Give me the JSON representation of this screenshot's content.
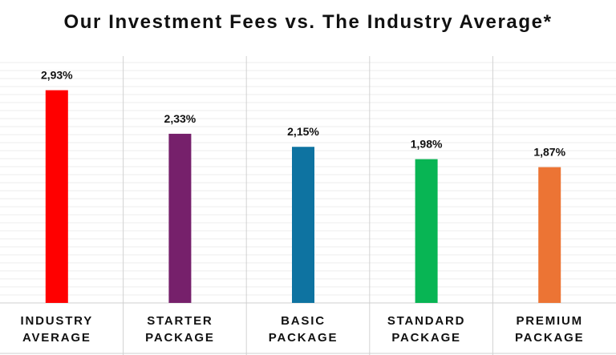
{
  "chart_data": {
    "type": "bar",
    "title": "Our Investment Fees vs. The Industry Average*",
    "categories": [
      "INDUSTRY AVERAGE",
      "STARTER PACKAGE",
      "BASIC PACKAGE",
      "STANDARD PACKAGE",
      "PREMIUM PACKAGE"
    ],
    "category_lines": [
      [
        "INDUSTRY",
        "AVERAGE"
      ],
      [
        "STARTER",
        "PACKAGE"
      ],
      [
        "BASIC",
        "PACKAGE"
      ],
      [
        "STANDARD",
        "PACKAGE"
      ],
      [
        "PREMIUM",
        "PACKAGE"
      ]
    ],
    "values": [
      2.93,
      2.33,
      2.15,
      1.98,
      1.87
    ],
    "value_labels": [
      "2,93%",
      "2,33%",
      "2,15%",
      "1,98%",
      "1,87%"
    ],
    "colors": [
      "#ff0000",
      "#76206b",
      "#0e73a1",
      "#08b554",
      "#ec7434"
    ],
    "ylim": [
      0,
      3.4
    ],
    "grid": true
  }
}
